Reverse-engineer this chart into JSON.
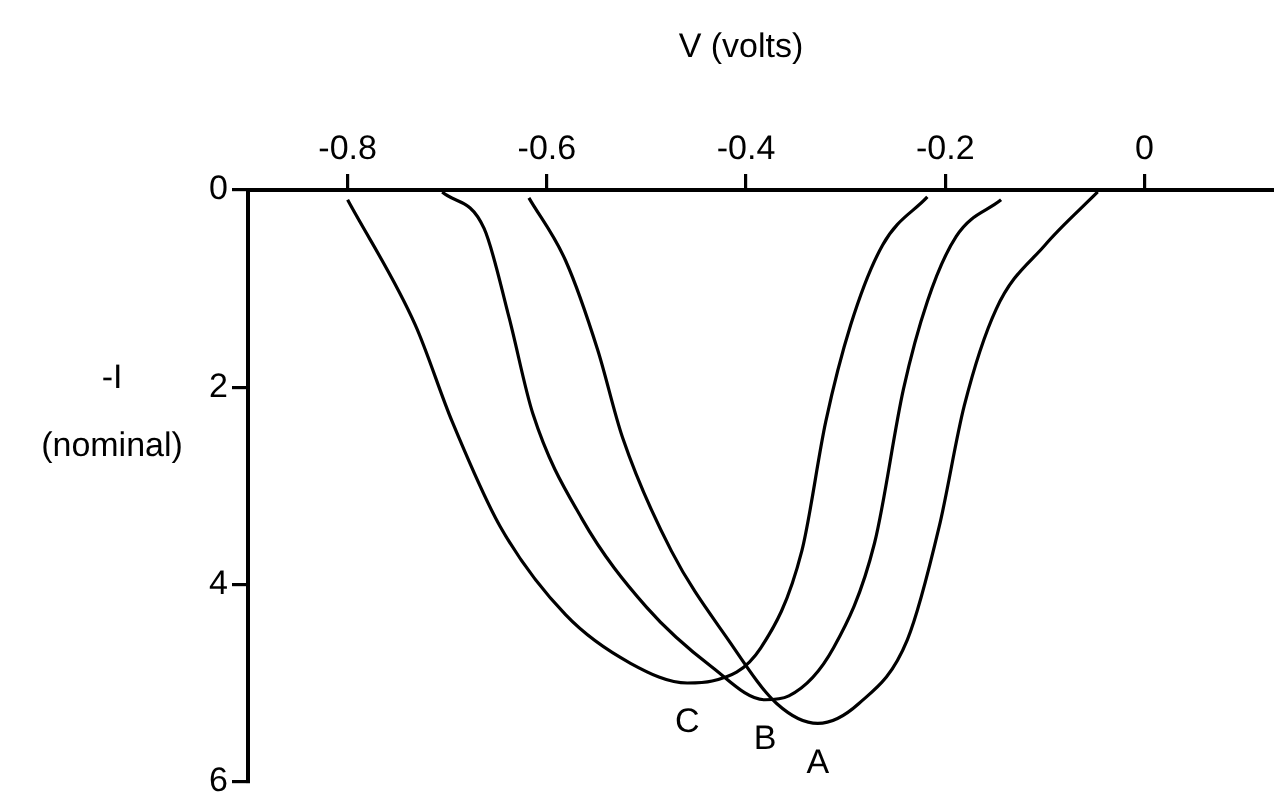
{
  "chart_data": {
    "type": "line",
    "xlabel": "V (volts)",
    "ylabel": "-I (nominal)",
    "xlim": [
      -0.9,
      0.13
    ],
    "xticks": [
      -0.8,
      -0.6,
      -0.4,
      -0.2,
      0
    ],
    "ylim": [
      6,
      0
    ],
    "yticks": [
      0,
      2,
      4,
      6
    ],
    "grid": false,
    "legend": false,
    "marker": "none",
    "line_style": "solid",
    "series": [
      {
        "name": "C",
        "color": "#000000",
        "x": [
          -0.8,
          -0.732,
          -0.695,
          -0.647,
          -0.581,
          -0.516,
          -0.459,
          -0.434,
          -0.385,
          -0.344,
          -0.32,
          -0.295,
          -0.263,
          -0.218
        ],
        "values": [
          0.1,
          1.37,
          2.35,
          3.41,
          4.31,
          4.8,
          5.0,
          4.98,
          4.64,
          3.66,
          2.35,
          1.37,
          0.56,
          0.07
        ]
      },
      {
        "name": "B",
        "color": "#000000",
        "x": [
          -0.705,
          -0.663,
          -0.638,
          -0.614,
          -0.565,
          -0.5,
          -0.434,
          -0.381,
          -0.357,
          -0.312,
          -0.271,
          -0.242,
          -0.218,
          -0.189,
          -0.144
        ],
        "values": [
          0.02,
          0.39,
          1.29,
          2.27,
          3.33,
          4.23,
          4.84,
          5.17,
          5.13,
          4.64,
          3.58,
          2.02,
          1.13,
          0.47,
          0.1
        ]
      },
      {
        "name": "A",
        "color": "#000000",
        "x": [
          -0.618,
          -0.581,
          -0.549,
          -0.524,
          -0.475,
          -0.418,
          -0.369,
          -0.328,
          -0.287,
          -0.238,
          -0.206,
          -0.181,
          -0.149,
          -0.1,
          -0.047
        ],
        "values": [
          0.08,
          0.72,
          1.62,
          2.51,
          3.66,
          4.56,
          5.21,
          5.41,
          5.21,
          4.56,
          3.41,
          2.19,
          1.21,
          0.56,
          0.02
        ]
      }
    ]
  }
}
